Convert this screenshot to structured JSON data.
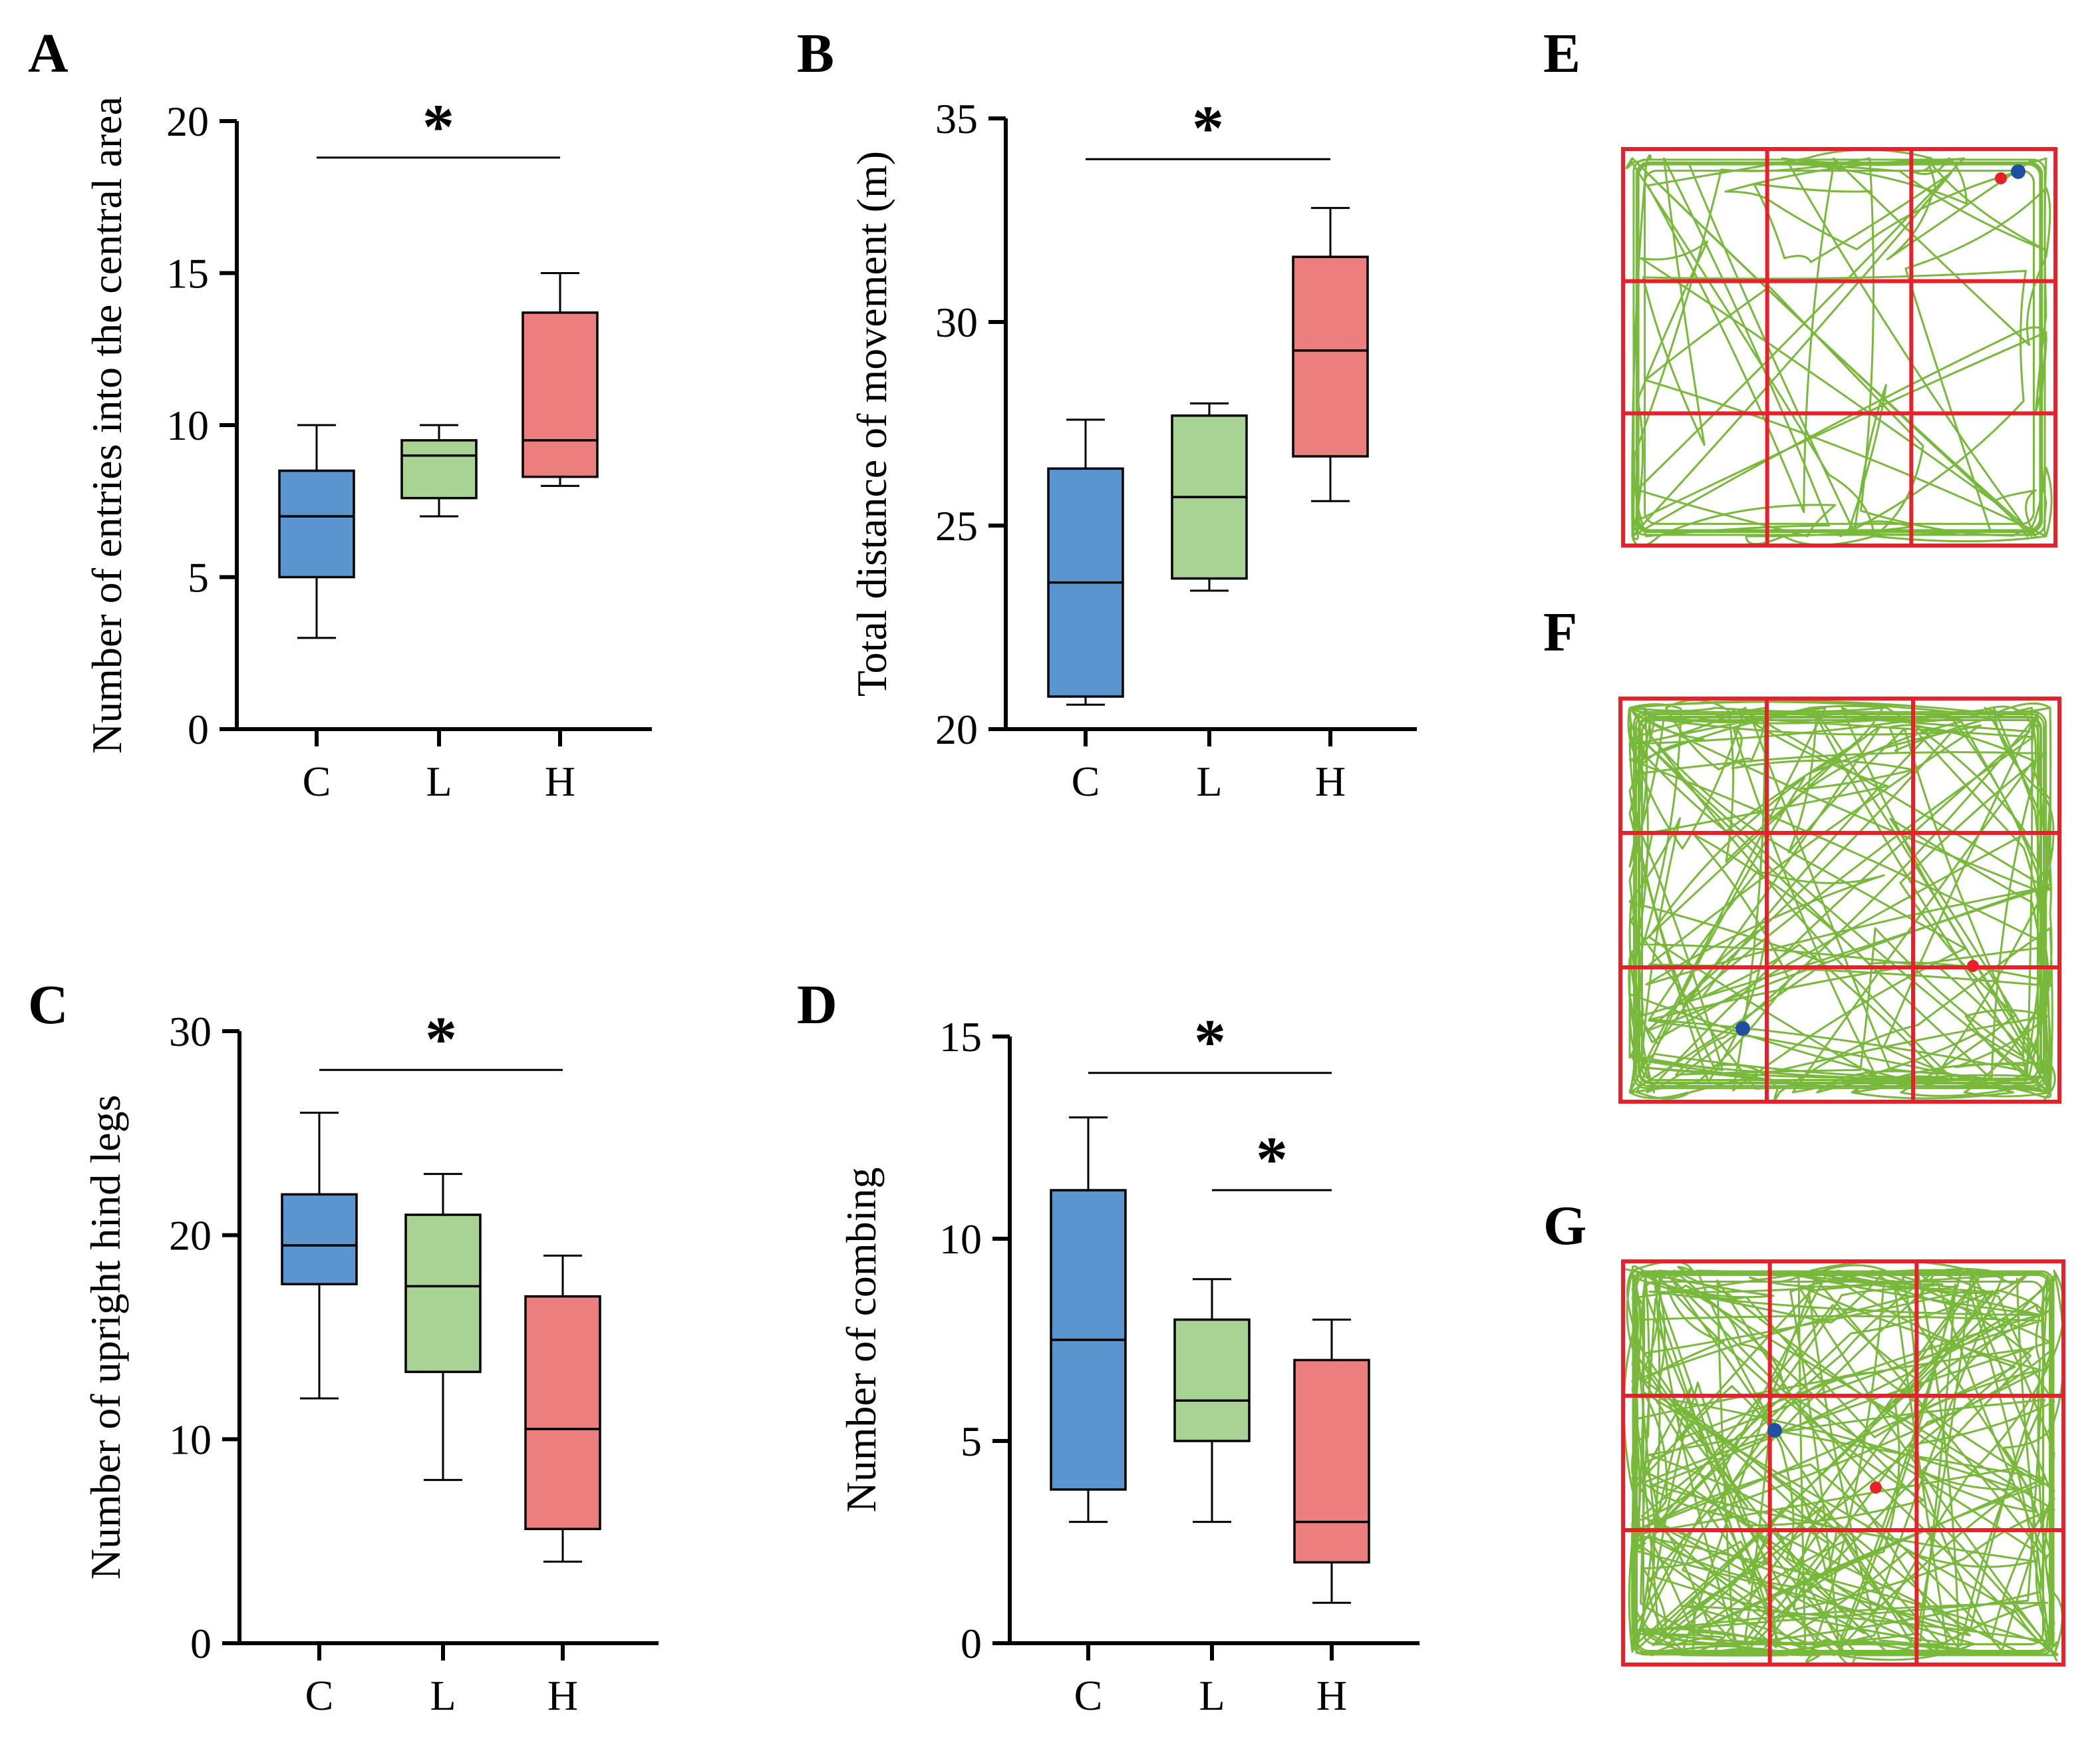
{
  "colors": {
    "C": "#5b95d0",
    "L": "#a8d394",
    "H": "#ec7e7e",
    "grid": "#e8202a",
    "track": "#78b83a",
    "start": "#1f4fa0",
    "end": "#e8202a"
  },
  "panels": {
    "A": {
      "letter": "A"
    },
    "B": {
      "letter": "B"
    },
    "C": {
      "letter": "C"
    },
    "D": {
      "letter": "D"
    },
    "E": {
      "letter": "E"
    },
    "F": {
      "letter": "F"
    },
    "G": {
      "letter": "G"
    }
  },
  "chart_data": [
    {
      "id": "A",
      "type": "box",
      "ylabel": "Number of entries into the central area",
      "categories": [
        "C",
        "L",
        "H"
      ],
      "ylim": [
        0,
        20
      ],
      "yticks": [
        0,
        5,
        10,
        15,
        20
      ],
      "yticks_text": [
        "0",
        "5",
        "10",
        "15",
        "20"
      ],
      "boxes": [
        {
          "cat": "C",
          "min": 3,
          "q1": 5,
          "median": 7,
          "q3": 8.5,
          "max": 10
        },
        {
          "cat": "L",
          "min": 7,
          "q1": 7.6,
          "median": 9,
          "q3": 9.5,
          "max": 10
        },
        {
          "cat": "H",
          "min": 8,
          "q1": 8.3,
          "median": 9.5,
          "q3": 13.7,
          "max": 15
        }
      ],
      "significance": [
        {
          "from": "C",
          "to": "H",
          "y": 18.8,
          "label": "*"
        }
      ]
    },
    {
      "id": "B",
      "type": "box",
      "ylabel": "Total distance of movement (m)",
      "categories": [
        "C",
        "L",
        "H"
      ],
      "ylim": [
        20,
        35
      ],
      "yticks": [
        20,
        25,
        30,
        35
      ],
      "yticks_text": [
        "20",
        "25",
        "30",
        "35"
      ],
      "boxes": [
        {
          "cat": "C",
          "min": 20.6,
          "q1": 20.8,
          "median": 23.6,
          "q3": 26.4,
          "max": 27.6
        },
        {
          "cat": "L",
          "min": 23.4,
          "q1": 23.7,
          "median": 25.7,
          "q3": 27.7,
          "max": 28.0
        },
        {
          "cat": "H",
          "min": 25.6,
          "q1": 26.7,
          "median": 29.3,
          "q3": 31.6,
          "max": 32.8
        }
      ],
      "significance": [
        {
          "from": "C",
          "to": "H",
          "y": 34.0,
          "label": "*"
        }
      ]
    },
    {
      "id": "C",
      "type": "box",
      "ylabel": "Number of upright hind legs",
      "categories": [
        "C",
        "L",
        "H"
      ],
      "ylim": [
        0,
        30
      ],
      "yticks": [
        0,
        10,
        20,
        30
      ],
      "yticks_text": [
        "0",
        "10",
        "20",
        "30"
      ],
      "boxes": [
        {
          "cat": "C",
          "min": 12,
          "q1": 17.6,
          "median": 19.5,
          "q3": 22,
          "max": 26
        },
        {
          "cat": "L",
          "min": 8,
          "q1": 13.3,
          "median": 17.5,
          "q3": 21,
          "max": 23
        },
        {
          "cat": "H",
          "min": 4,
          "q1": 5.6,
          "median": 10.5,
          "q3": 17,
          "max": 19
        }
      ],
      "significance": [
        {
          "from": "C",
          "to": "H",
          "y": 28.1,
          "label": "*"
        }
      ]
    },
    {
      "id": "D",
      "type": "box",
      "ylabel": "Number of combing",
      "categories": [
        "C",
        "L",
        "H"
      ],
      "ylim": [
        0,
        15
      ],
      "yticks": [
        0,
        5,
        10,
        15
      ],
      "yticks_text": [
        "0",
        "5",
        "10",
        "15"
      ],
      "boxes": [
        {
          "cat": "C",
          "min": 3,
          "q1": 3.8,
          "median": 7.5,
          "q3": 11.2,
          "max": 13
        },
        {
          "cat": "L",
          "min": 3,
          "q1": 5,
          "median": 6,
          "q3": 8,
          "max": 9
        },
        {
          "cat": "H",
          "min": 1,
          "q1": 2,
          "median": 3,
          "q3": 7,
          "max": 8
        }
      ],
      "significance": [
        {
          "from": "C",
          "to": "H",
          "y": 14.1,
          "label": "*"
        },
        {
          "from": "L",
          "to": "H",
          "y": 11.2,
          "label": "*"
        }
      ]
    }
  ]
}
